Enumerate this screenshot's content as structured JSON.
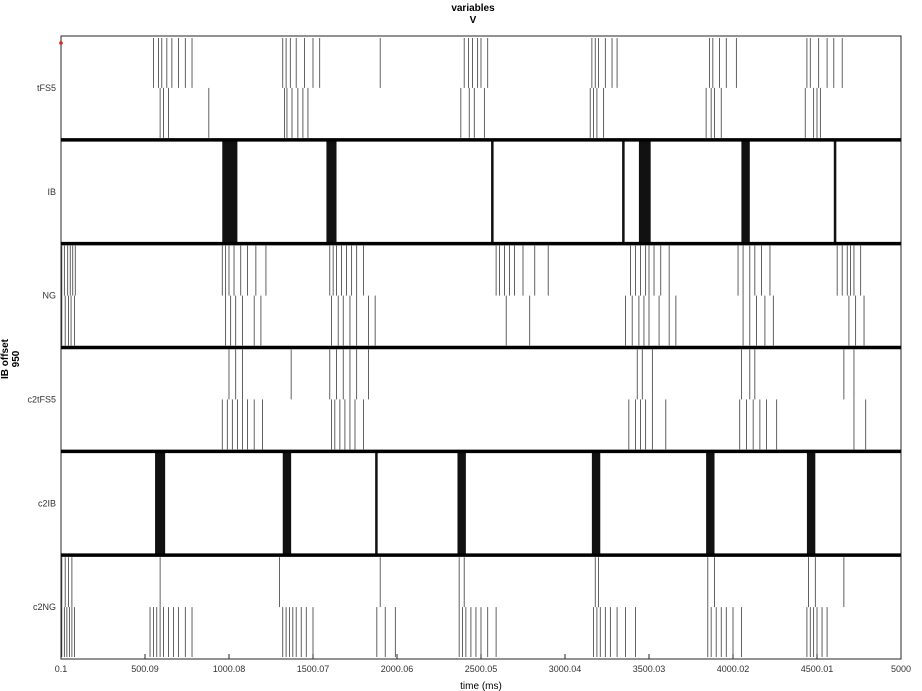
{
  "chart_data": {
    "type": "raster",
    "title": "variables",
    "subtitle": "V",
    "xlabel": "time (ms)",
    "ylabel": "IB offset",
    "ylabel_sub": "950",
    "xlim": [
      0.1,
      5000
    ],
    "xticks": [
      0.1,
      500.09,
      1000.08,
      1500.07,
      2000.06,
      2500.05,
      3000.04,
      3500.03,
      4000.02,
      4500.01,
      5000
    ],
    "xtick_labels": [
      "0.1",
      "500.09",
      "1000.08",
      "1500.07",
      "2000.06",
      "2500.05",
      "3000.04",
      "3500.03",
      "4000.02",
      "4500.01",
      "5000"
    ],
    "marker": {
      "x": 0.1,
      "color": "#e02020"
    },
    "panels": [
      {
        "name": "tFS5",
        "bursts": [
          {
            "top": [
              550,
              580,
              600,
              630,
              660,
              700,
              740,
              780
            ],
            "bottom": [
              590,
              610,
              640,
              880
            ]
          },
          {
            "top": [
              1320,
              1340,
              1365,
              1400,
              1450,
              1500,
              1540
            ],
            "bottom": [
              1330,
              1345,
              1375,
              1410,
              1440,
              1470
            ]
          },
          {
            "top": [
              1900
            ],
            "bottom": []
          },
          {
            "top": [
              2400,
              2425,
              2450,
              2480,
              2500,
              2540
            ],
            "bottom": [
              2380,
              2430,
              2460,
              2520
            ]
          },
          {
            "top": [
              3160,
              3180,
              3200,
              3240,
              3280,
              3310
            ],
            "bottom": [
              3150,
              3170,
              3190,
              3230
            ]
          },
          {
            "top": [
              3860,
              3880,
              3920,
              3960,
              4020
            ],
            "bottom": [
              3840,
              3870,
              3890,
              3930
            ]
          },
          {
            "top": [
              4440,
              4460,
              4510,
              4560,
              4600,
              4650
            ],
            "bottom": [
              4430,
              4480,
              4500,
              4520
            ]
          }
        ]
      },
      {
        "name": "IB",
        "bursts": [
          {
            "dense": [
              960,
              1050
            ]
          },
          {
            "dense": [
              1580,
              1640
            ]
          },
          {
            "dense": [
              2560,
              2575
            ]
          },
          {
            "dense": [
              3340,
              3355
            ]
          },
          {
            "dense": [
              3440,
              3510
            ]
          },
          {
            "dense": [
              4050,
              4100
            ]
          },
          {
            "dense": [
              4600,
              4615
            ]
          }
        ]
      },
      {
        "name": "NG",
        "bursts": [
          {
            "top": [
              5,
              20,
              40,
              55,
              70,
              85
            ],
            "bottom": [
              5,
              25,
              45,
              60,
              80
            ]
          },
          {
            "top": [
              960,
              980,
              1000,
              1030,
              1070,
              1110,
              1160,
              1220
            ],
            "bottom": [
              980,
              1010,
              1040,
              1080,
              1150,
              1190
            ]
          },
          {
            "top": [
              1600,
              1620,
              1640,
              1670,
              1700,
              1730,
              1760,
              1800
            ],
            "bottom": [
              1610,
              1650,
              1680,
              1720,
              1760,
              1830,
              1870
            ]
          },
          {
            "top": [
              2590,
              2610,
              2640,
              2670,
              2700,
              2750,
              2820,
              2900
            ],
            "bottom": [
              2650,
              2790
            ]
          },
          {
            "top": [
              3390,
              3420,
              3450,
              3480,
              3500,
              3530,
              3570,
              3620
            ],
            "bottom": [
              3360,
              3400,
              3440,
              3470,
              3500,
              3560,
              3620,
              3660
            ]
          },
          {
            "top": [
              4030,
              4060,
              4100,
              4130,
              4170,
              4220
            ],
            "bottom": [
              4060,
              4100,
              4140,
              4190,
              4240
            ]
          },
          {
            "top": [
              4620,
              4650,
              4680,
              4700,
              4720,
              4760
            ],
            "bottom": [
              4690,
              4730,
              4780
            ]
          }
        ]
      },
      {
        "name": "c2tFS5",
        "bursts": [
          {
            "top": [
              1000,
              1040,
              1080
            ],
            "bottom": [
              960,
              990,
              1020,
              1050,
              1080,
              1110,
              1150,
              1200
            ]
          },
          {
            "top": [
              1370
            ],
            "bottom": []
          },
          {
            "top": [
              1600,
              1640,
              1680,
              1720,
              1760,
              1830
            ],
            "bottom": [
              1610,
              1630,
              1660,
              1690,
              1720,
              1750,
              1800
            ]
          },
          {
            "top": [
              3430,
              3460,
              3520
            ],
            "bottom": [
              3380,
              3420,
              3450,
              3480,
              3520,
              3600
            ]
          },
          {
            "top": [
              4050,
              4100,
              4130
            ],
            "bottom": [
              4040,
              4080,
              4120,
              4160,
              4200,
              4260
            ]
          },
          {
            "top": [
              4660,
              4720
            ],
            "bottom": [
              4720,
              4790
            ]
          }
        ]
      },
      {
        "name": "c2IB",
        "bursts": [
          {
            "dense": [
              560,
              620
            ]
          },
          {
            "dense": [
              1320,
              1370
            ]
          },
          {
            "dense": [
              1870,
              1880
            ]
          },
          {
            "dense": [
              2360,
              2410
            ]
          },
          {
            "dense": [
              3160,
              3210
            ]
          },
          {
            "dense": [
              3840,
              3890
            ]
          },
          {
            "dense": [
              4440,
              4490
            ]
          }
        ]
      },
      {
        "name": "c2NG",
        "bursts": [
          {
            "top": [
              5,
              25,
              45,
              65
            ],
            "bottom": [
              5,
              20,
              35,
              50,
              65,
              80
            ]
          },
          {
            "top": [
              590
            ],
            "bottom": [
              530,
              550,
              570,
              590,
              610,
              640,
              670,
              700,
              740,
              780
            ]
          },
          {
            "top": [
              1300
            ],
            "bottom": [
              1320,
              1340,
              1360,
              1380,
              1400,
              1430,
              1460,
              1500
            ]
          },
          {
            "top": [
              1900
            ],
            "bottom": [
              1880,
              1930,
              1990
            ]
          },
          {
            "top": [
              2370,
              2400
            ],
            "bottom": [
              2370,
              2390,
              2410,
              2440,
              2470,
              2500,
              2540,
              2590
            ]
          },
          {
            "top": [
              3180,
              3200
            ],
            "bottom": [
              3170,
              3190,
              3210,
              3240,
              3270,
              3310,
              3360,
              3420
            ]
          },
          {
            "top": [
              3850,
              3890
            ],
            "bottom": [
              3850,
              3870,
              3900,
              3930,
              3960,
              4000,
              4050
            ]
          },
          {
            "top": [
              4450,
              4490,
              4660
            ],
            "bottom": [
              4440,
              4460,
              4480,
              4500,
              4530,
              4560
            ]
          }
        ]
      }
    ]
  }
}
